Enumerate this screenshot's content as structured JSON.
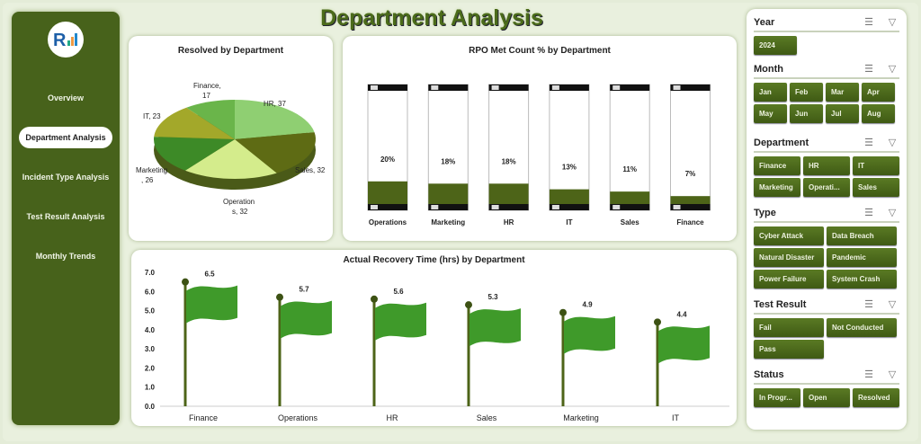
{
  "title": "Department Analysis",
  "sidebar": {
    "items": [
      {
        "label": "Overview"
      },
      {
        "label": "Department Analysis",
        "active": true
      },
      {
        "label": "Incident Type Analysis"
      },
      {
        "label": "Test Result Analysis"
      },
      {
        "label": "Monthly Trends"
      }
    ]
  },
  "colors": {
    "sidebar": "#47621b",
    "accent": "#4b6b1a",
    "button": "#4e6c1d"
  },
  "chart_data": [
    {
      "type": "pie",
      "title": "Resolved by Department",
      "categories": [
        "HR",
        "Sales",
        "Operations",
        "Marketing",
        "IT",
        "Finance"
      ],
      "values": [
        37,
        32,
        32,
        26,
        23,
        17
      ],
      "data_labels": [
        "HR, 37",
        "Sales, 32",
        "Operation s, 32",
        "Marketing , 26",
        "IT, 23",
        "Finance, 17"
      ],
      "colors": [
        "#8fcf72",
        "#5e6b14",
        "#d4ec8c",
        "#3d8a27",
        "#a3a82a",
        "#6ab54a"
      ]
    },
    {
      "type": "bar",
      "title": "RPO Met Count % by Department",
      "categories": [
        "Operations",
        "Marketing",
        "HR",
        "IT",
        "Sales",
        "Finance"
      ],
      "values": [
        20,
        18,
        18,
        13,
        11,
        7
      ],
      "data_labels": [
        "20%",
        "18%",
        "18%",
        "13%",
        "11%",
        "7%"
      ],
      "ylim": [
        0,
        100
      ]
    },
    {
      "type": "bar",
      "title": "Actual Recovery Time (hrs) by Department",
      "categories": [
        "Finance",
        "Operations",
        "HR",
        "Sales",
        "Marketing",
        "IT"
      ],
      "values": [
        6.5,
        5.7,
        5.6,
        5.3,
        4.9,
        4.4
      ],
      "data_labels": [
        "6.5",
        "5.7",
        "5.6",
        "5.3",
        "4.9",
        "4.4"
      ],
      "ylim": [
        0,
        7
      ],
      "yticks": [
        "0.0",
        "1.0",
        "2.0",
        "3.0",
        "4.0",
        "5.0",
        "6.0",
        "7.0"
      ]
    }
  ],
  "filters": [
    {
      "title": "Year",
      "items": [
        "2024"
      ]
    },
    {
      "title": "Month",
      "items": [
        "Jan",
        "Feb",
        "Mar",
        "Apr",
        "May",
        "Jun",
        "Jul",
        "Aug"
      ]
    },
    {
      "title": "Department",
      "items": [
        "Finance",
        "HR",
        "IT",
        "Marketing",
        "Operati...",
        "Sales"
      ]
    },
    {
      "title": "Type",
      "items": [
        "Cyber Attack",
        "Data Breach",
        "Natural Disaster",
        "Pandemic",
        "Power Failure",
        "System Crash"
      ]
    },
    {
      "title": "Test Result",
      "items": [
        "Fail",
        "Not Conducted",
        "Pass"
      ]
    },
    {
      "title": "Status",
      "items": [
        "In Progr...",
        "Open",
        "Resolved"
      ]
    }
  ]
}
